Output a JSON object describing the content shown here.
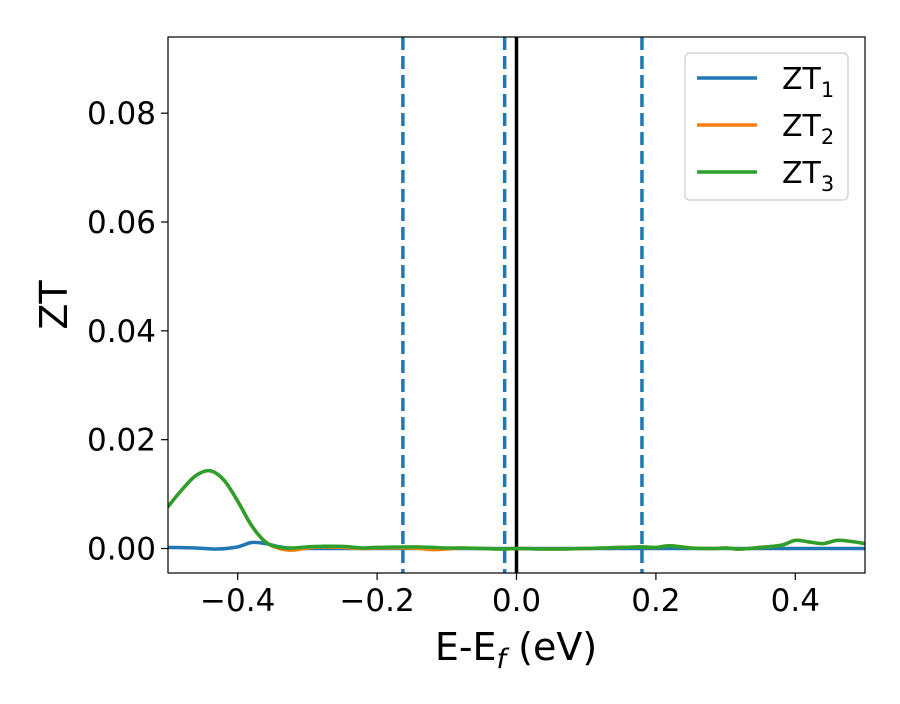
{
  "chart_data": {
    "type": "line",
    "xlabel": "E-E",
    "xlabel_sub": "f",
    "xlabel_unit": " (eV)",
    "ylabel": "ZT",
    "xlim": [
      -0.5,
      0.5
    ],
    "ylim": [
      -0.0045,
      0.094
    ],
    "xticks": [
      -0.4,
      -0.2,
      0.0,
      0.2,
      0.4
    ],
    "xtick_labels": [
      "−0.4",
      "−0.2",
      "0.0",
      "0.2",
      "0.4"
    ],
    "yticks": [
      0.0,
      0.02,
      0.04,
      0.06,
      0.08
    ],
    "ytick_labels": [
      "0.00",
      "0.02",
      "0.04",
      "0.06",
      "0.08"
    ],
    "grid": false,
    "legend_position": "top-right",
    "colors": {
      "ZT1": "#1f77b4",
      "ZT2": "#ff7f0e",
      "ZT3": "#2ca02c",
      "fermi": "#000000",
      "dashed": "#1f77b4"
    },
    "vlines": [
      {
        "x": 0.0,
        "style": "solid",
        "color": "#000000"
      },
      {
        "x": -0.163,
        "style": "dashed",
        "color": "#1f77b4"
      },
      {
        "x": -0.017,
        "style": "dashed",
        "color": "#1f77b4"
      },
      {
        "x": 0.18,
        "style": "dashed",
        "color": "#1f77b4"
      }
    ],
    "series": [
      {
        "name": "ZT",
        "sub": "1",
        "color": "#1f77b4",
        "x": [
          -0.5,
          -0.46,
          -0.43,
          -0.4,
          -0.38,
          -0.36,
          -0.34,
          -0.32,
          -0.3,
          0.0,
          0.5
        ],
        "y": [
          0.0002,
          0.0001,
          -0.0001,
          0.0003,
          0.0011,
          0.0009,
          0.0003,
          0.0,
          0.0,
          0.0,
          0.0
        ]
      },
      {
        "name": "ZT",
        "sub": "2",
        "color": "#ff7f0e",
        "x": [
          -0.5,
          -0.48,
          -0.46,
          -0.44,
          -0.42,
          -0.4,
          -0.38,
          -0.36,
          -0.34,
          -0.32,
          -0.3,
          -0.28,
          -0.25,
          -0.22,
          -0.2,
          -0.15,
          -0.12,
          -0.1,
          -0.08,
          -0.05,
          -0.02,
          0.0,
          0.05,
          0.1,
          0.15,
          0.18,
          0.2,
          0.22,
          0.25,
          0.28,
          0.3,
          0.32,
          0.35,
          0.38,
          0.4,
          0.42,
          0.44,
          0.46,
          0.48,
          0.5
        ],
        "y": [
          0.0077,
          0.0108,
          0.0134,
          0.0143,
          0.0126,
          0.0087,
          0.0042,
          0.0012,
          0.0,
          -0.0003,
          0.0001,
          0.0003,
          0.0002,
          0.0,
          0.0001,
          0.0001,
          -0.0002,
          -0.0001,
          0.0001,
          0.0,
          -0.0001,
          0.0,
          -0.0001,
          0.0,
          0.0002,
          0.0003,
          0.0002,
          0.0005,
          0.0001,
          0.0,
          0.0001,
          -0.0001,
          0.0002,
          0.0006,
          0.0015,
          0.0012,
          0.0009,
          0.0015,
          0.0013,
          0.0009
        ]
      },
      {
        "name": "ZT",
        "sub": "3",
        "color": "#2ca02c",
        "x": [
          -0.5,
          -0.48,
          -0.46,
          -0.44,
          -0.42,
          -0.4,
          -0.38,
          -0.36,
          -0.34,
          -0.32,
          -0.3,
          -0.28,
          -0.25,
          -0.22,
          -0.2,
          -0.15,
          -0.12,
          -0.1,
          -0.08,
          -0.05,
          -0.02,
          0.0,
          0.05,
          0.1,
          0.15,
          0.18,
          0.2,
          0.22,
          0.25,
          0.28,
          0.3,
          0.32,
          0.35,
          0.38,
          0.4,
          0.42,
          0.44,
          0.46,
          0.48,
          0.5
        ],
        "y": [
          0.0077,
          0.0108,
          0.0134,
          0.0143,
          0.0126,
          0.0087,
          0.0042,
          0.0012,
          0.0002,
          0.0001,
          0.0003,
          0.0004,
          0.0004,
          0.0001,
          0.0002,
          0.0003,
          0.0002,
          0.0001,
          0.0001,
          0.0,
          -0.0001,
          0.0,
          -0.0001,
          0.0,
          0.0002,
          0.0003,
          0.0002,
          0.0005,
          0.0001,
          0.0,
          0.0001,
          -0.0001,
          0.0002,
          0.0006,
          0.0015,
          0.0012,
          0.0009,
          0.0015,
          0.0013,
          0.0009
        ]
      }
    ]
  }
}
